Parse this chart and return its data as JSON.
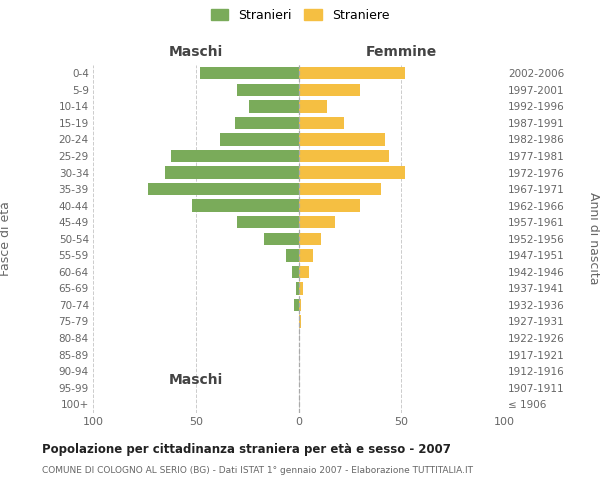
{
  "age_groups": [
    "100+",
    "95-99",
    "90-94",
    "85-89",
    "80-84",
    "75-79",
    "70-74",
    "65-69",
    "60-64",
    "55-59",
    "50-54",
    "45-49",
    "40-44",
    "35-39",
    "30-34",
    "25-29",
    "20-24",
    "15-19",
    "10-14",
    "5-9",
    "0-4"
  ],
  "birth_years": [
    "≤ 1906",
    "1907-1911",
    "1912-1916",
    "1917-1921",
    "1922-1926",
    "1927-1931",
    "1932-1936",
    "1937-1941",
    "1942-1946",
    "1947-1951",
    "1952-1956",
    "1957-1961",
    "1962-1966",
    "1967-1971",
    "1972-1976",
    "1977-1981",
    "1982-1986",
    "1987-1991",
    "1992-1996",
    "1997-2001",
    "2002-2006"
  ],
  "males": [
    0,
    0,
    0,
    0,
    0,
    0,
    2,
    1,
    3,
    6,
    17,
    30,
    52,
    73,
    65,
    62,
    38,
    31,
    24,
    30,
    48
  ],
  "females": [
    0,
    0,
    0,
    0,
    0,
    1,
    1,
    2,
    5,
    7,
    11,
    18,
    30,
    40,
    52,
    44,
    42,
    22,
    14,
    30,
    52
  ],
  "male_color": "#7aab5a",
  "female_color": "#f5bf42",
  "background_color": "#ffffff",
  "grid_color": "#cccccc",
  "title": "Popolazione per cittadinanza straniera per età e sesso - 2007",
  "subtitle": "COMUNE DI COLOGNO AL SERIO (BG) - Dati ISTAT 1° gennaio 2007 - Elaborazione TUTTITALIA.IT",
  "ylabel_left": "Fasce di età",
  "ylabel_right": "Anni di nascita",
  "xlabel_left": "Maschi",
  "xlabel_right": "Femmine",
  "legend_stranieri": "Stranieri",
  "legend_straniere": "Straniere",
  "xlim": 100,
  "bar_height": 0.75
}
